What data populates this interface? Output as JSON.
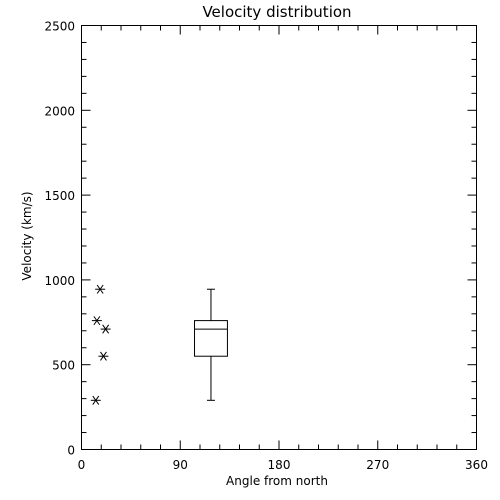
{
  "chart_data": {
    "type": "scatter",
    "title": "Velocity distribution",
    "xlabel": "Angle from north",
    "ylabel": "Velocity (km/s)",
    "xlim": [
      0,
      360
    ],
    "ylim": [
      0,
      2500
    ],
    "xticks": [
      0,
      90,
      180,
      270,
      360
    ],
    "yticks": [
      0,
      500,
      1000,
      1500,
      2000,
      2500
    ],
    "xtick_labels": [
      "0",
      "90",
      "180",
      "270",
      "360"
    ],
    "ytick_labels": [
      "0",
      "500",
      "1000",
      "1500",
      "2000",
      "2500"
    ],
    "x_minor_step": 18,
    "y_minor_step": 100,
    "grid": false,
    "series": [
      {
        "marker": "asterisk",
        "points": [
          {
            "x": 13,
            "y": 290
          },
          {
            "x": 14,
            "y": 760
          },
          {
            "x": 17,
            "y": 945
          },
          {
            "x": 20,
            "y": 550
          },
          {
            "x": 22,
            "y": 710
          }
        ]
      }
    ],
    "boxplot": {
      "x": 118,
      "half_width": 15,
      "whisker_low": 290,
      "q1": 550,
      "median": 710,
      "q3": 760,
      "whisker_high": 945
    }
  }
}
